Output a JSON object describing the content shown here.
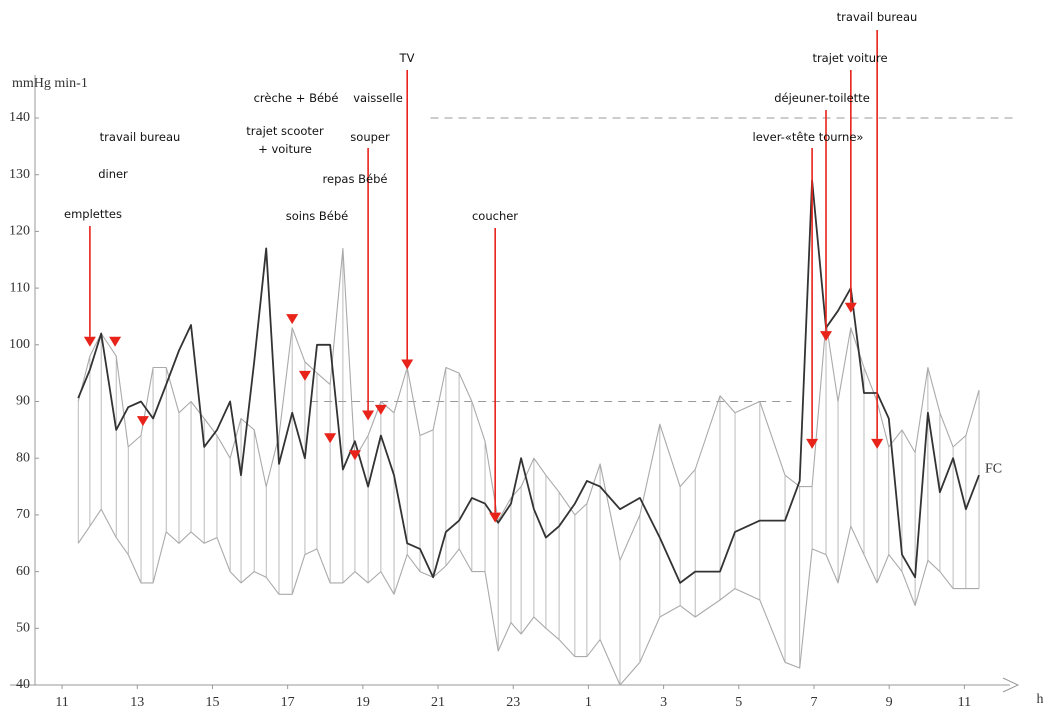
{
  "chart_data": {
    "type": "line",
    "y_label": "mmHg min-1",
    "x_label": "h",
    "xlim": [
      10.2,
      36.4
    ],
    "ylim": [
      40,
      140
    ],
    "yticks": [
      40,
      50,
      60,
      70,
      80,
      90,
      100,
      110,
      120,
      130,
      140
    ],
    "xticks": [
      11,
      13,
      15,
      17,
      19,
      21,
      23,
      {
        "value": 25,
        "label": "1"
      },
      {
        "value": 27,
        "label": "3"
      },
      {
        "value": 29,
        "label": "5"
      },
      {
        "value": 31,
        "label": "7"
      },
      {
        "value": 33,
        "label": "9"
      },
      {
        "value": 35,
        "label": "11"
      }
    ],
    "x": [
      11.43,
      11.74,
      12.04,
      12.44,
      12.76,
      13.1,
      13.42,
      13.77,
      14.11,
      14.43,
      14.78,
      15.12,
      15.47,
      15.76,
      16.11,
      16.43,
      16.77,
      17.12,
      17.46,
      17.78,
      18.13,
      18.47,
      18.79,
      19.14,
      19.48,
      19.83,
      20.18,
      20.52,
      20.87,
      21.21,
      21.56,
      21.9,
      22.25,
      22.6,
      22.94,
      23.21,
      23.55,
      23.87,
      24.22,
      24.64,
      24.96,
      25.31,
      25.84,
      26.37,
      26.9,
      27.44,
      27.84,
      28.5,
      28.9,
      29.56,
      30.23,
      30.62,
      30.95,
      31.32,
      31.64,
      31.98,
      32.33,
      32.68,
      32.99,
      33.34,
      33.69,
      34.03,
      34.35,
      34.7,
      35.04,
      35.39
    ],
    "series": [
      {
        "name": "FC",
        "color": "#333333",
        "values": [
          90.6,
          95.6,
          102,
          85,
          89,
          90,
          87,
          93,
          99,
          103.5,
          82,
          85,
          90,
          77,
          97,
          117,
          79,
          88,
          80,
          100,
          100,
          78,
          83,
          75,
          84,
          77,
          65,
          64,
          59,
          67,
          69,
          73,
          72,
          68.6,
          72,
          80,
          71,
          66,
          68,
          72,
          76,
          75,
          71,
          73,
          66,
          58,
          60,
          60,
          67,
          69,
          69,
          76,
          129,
          103,
          106,
          110,
          91.5,
          91.5,
          87,
          63,
          59,
          88,
          74,
          80,
          71,
          77
        ]
      },
      {
        "color": "#aaaaaa",
        "values": [
          90,
          98,
          102,
          98,
          82,
          84,
          96,
          96,
          88,
          90,
          87,
          84,
          80,
          87,
          85,
          75,
          84,
          103,
          97,
          95,
          93,
          117,
          80,
          84,
          90,
          88,
          96,
          84,
          85,
          96,
          95,
          90,
          83,
          69,
          73,
          75,
          80,
          77,
          74,
          70,
          72,
          79,
          62,
          70,
          86,
          75,
          78,
          91,
          88,
          90,
          77,
          75,
          75,
          104,
          90,
          103,
          96,
          90,
          82,
          85,
          81,
          96,
          88,
          82,
          84,
          92
        ]
      },
      {
        "color": "#aaaaaa",
        "values": [
          65,
          68,
          71,
          66,
          63,
          58,
          58,
          67,
          65,
          67,
          65,
          66,
          60,
          58,
          60,
          59,
          56,
          56,
          63,
          64,
          58,
          58,
          60,
          58,
          60,
          56,
          63,
          60,
          59,
          61,
          64,
          60,
          60,
          46,
          51,
          49,
          52,
          50,
          48,
          45,
          45,
          48,
          40,
          44,
          52,
          54,
          52,
          55,
          57,
          55,
          44,
          43,
          64,
          63,
          58,
          68,
          63,
          58,
          63,
          60,
          54,
          62,
          60,
          57,
          57,
          57
        ]
      }
    ],
    "reference_lines": [
      {
        "value": 140,
        "x": [
          20.8,
          36.4
        ]
      },
      {
        "value": 90,
        "x": [
          17.6,
          30.4
        ]
      }
    ],
    "annotation_color": "#e8231a",
    "annotations": [
      {
        "text": "emplettes",
        "x": 11.74,
        "y": 100
      },
      {
        "text": "travail bureau",
        "x": 12.41,
        "y": 100
      },
      {
        "text": "diner",
        "x": 13.15,
        "y": 86
      },
      {
        "text": "crèche + Bébé",
        "x": 17.12,
        "y": 104
      },
      {
        "text": "vaisselle",
        "x": 19.48,
        "y": 88
      },
      {
        "text": "trajet scooter + voiture",
        "x": 17.46,
        "y": 94
      },
      {
        "text": "soins Bébé",
        "x": 18.13,
        "y": 83
      },
      {
        "text": "repas Bébé",
        "x": 18.79,
        "y": 80
      },
      {
        "text": "souper",
        "x": 19.14,
        "y": 87
      },
      {
        "text": "TV",
        "x": 20.18,
        "y": 96
      },
      {
        "text": "coucher",
        "x": 22.52,
        "y": 69
      },
      {
        "text": "lever-«tête tourne»",
        "x": 30.95,
        "y": 82
      },
      {
        "text": "déjeuner-toilette",
        "x": 31.32,
        "y": 101
      },
      {
        "text": "trajet voiture",
        "x": 31.98,
        "y": 106
      },
      {
        "text": "travail bureau",
        "x": 32.68,
        "y": 82
      }
    ]
  }
}
